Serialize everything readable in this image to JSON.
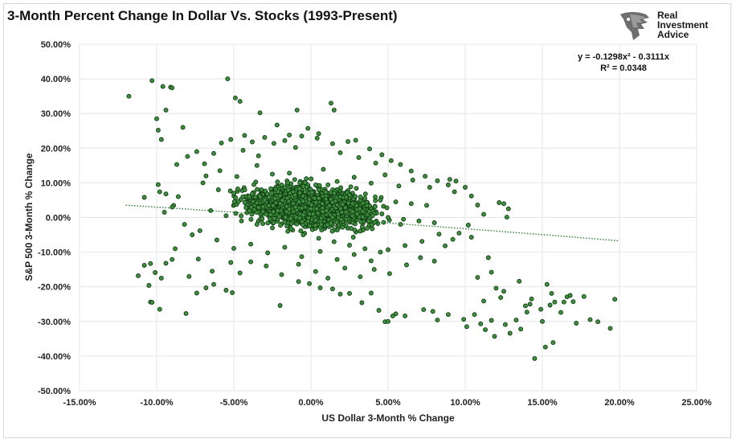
{
  "header": {
    "title": "3-Month Percent Change In Dollar Vs. Stocks (1993-Present)"
  },
  "logo": {
    "icon": "eagle-head-icon",
    "lines": [
      "Real",
      "Investment",
      "Advice"
    ]
  },
  "colors": {
    "point_fill": "#3f8f3f",
    "point_stroke": "#0f3a12",
    "trendline": "#2e7d32",
    "grid": "#e6e6e6"
  },
  "chart_data": {
    "type": "scatter",
    "title": "3-Month Percent Change In Dollar Vs. Stocks (1993-Present)",
    "xlabel": "US Dollar 3-Month % Change",
    "ylabel": "S&P 500 3-Month % Change",
    "xlim": [
      -15,
      25
    ],
    "ylim": [
      -50,
      50
    ],
    "x_ticks": [
      -15,
      -10,
      -5,
      0,
      5,
      10,
      15,
      20,
      25
    ],
    "x_tick_labels": [
      "-15.00%",
      "-10.00%",
      "-5.00%",
      "0.00%",
      "5.00%",
      "10.00%",
      "15.00%",
      "20.00%",
      "25.00%"
    ],
    "y_ticks": [
      50,
      40,
      30,
      20,
      10,
      0,
      -10,
      -20,
      -30,
      -40,
      -50
    ],
    "y_tick_labels": [
      "50.00%",
      "40.00%",
      "30.00%",
      "20.00%",
      "10.00%",
      "0.00%",
      "-10.00%",
      "-20.00%",
      "-30.00%",
      "-40.00%",
      "-50.00%"
    ],
    "grid": true,
    "legend": "none",
    "trendline": {
      "type": "polynomial",
      "order": 2,
      "coefficients": [
        -0.1298,
        -0.3111,
        0
      ],
      "x_range": [
        -12,
        20
      ],
      "equation": "y = -0.1298x² - 0.3111x",
      "r2": "R² = 0.0348",
      "style": "dotted"
    },
    "series": [
      {
        "points": [
          [
            -11.8,
            35
          ],
          [
            -10.3,
            39.5
          ],
          [
            -9.6,
            37.8
          ],
          [
            -9.1,
            37.6
          ],
          [
            -9.0,
            37.4
          ],
          [
            -10.0,
            28.5
          ],
          [
            -9.9,
            25.2
          ],
          [
            -9.4,
            31.0
          ],
          [
            -9.7,
            22.5
          ],
          [
            -8.3,
            26.0
          ],
          [
            -5.4,
            40.0
          ],
          [
            -4.9,
            34.5
          ],
          [
            -4.6,
            33.5
          ],
          [
            -3.3,
            30.2
          ],
          [
            -0.9,
            31.0
          ],
          [
            1.3,
            33.0
          ],
          [
            1.5,
            31.0
          ],
          [
            -1.4,
            23.8
          ],
          [
            -0.2,
            25.7
          ],
          [
            -2.2,
            26.7
          ],
          [
            0.5,
            24.2
          ],
          [
            -9.9,
            9.5
          ],
          [
            -9.4,
            6.8
          ],
          [
            -8.6,
            6.0
          ],
          [
            -8.9,
            3.5
          ],
          [
            -9.5,
            1.5
          ],
          [
            -10.8,
            5.8
          ],
          [
            -9.8,
            7.4
          ],
          [
            10.4,
            6.2
          ],
          [
            10.8,
            3.6
          ],
          [
            11.2,
            0.9
          ],
          [
            12.2,
            4.3
          ],
          [
            12.5,
            4.0
          ],
          [
            12.8,
            2.5
          ],
          [
            12.7,
            0.1
          ],
          [
            9.0,
            11.0
          ],
          [
            9.4,
            10.5
          ],
          [
            10.0,
            8.7
          ],
          [
            9.3,
            7.4
          ],
          [
            8.9,
            9.4
          ],
          [
            -11.2,
            -16.8
          ],
          [
            -10.8,
            -13.8
          ],
          [
            -10.4,
            -13.3
          ],
          [
            -10.1,
            -15.9
          ],
          [
            -9.7,
            -17.5
          ],
          [
            -9.4,
            -13.2
          ],
          [
            -9.0,
            -12.1
          ],
          [
            -10.5,
            -19.6
          ],
          [
            -10.4,
            -24.4
          ],
          [
            -10.3,
            -24.5
          ],
          [
            -9.8,
            -26.5
          ],
          [
            -8.1,
            -27.7
          ],
          [
            -7.4,
            -21.8
          ],
          [
            -6.8,
            -20.3
          ],
          [
            -5.5,
            -21.0
          ],
          [
            -5.1,
            -21.7
          ],
          [
            -6.3,
            -19.3
          ],
          [
            -7.9,
            -17.0
          ],
          [
            -2.0,
            -25.4
          ],
          [
            -0.8,
            -18.5
          ],
          [
            -0.1,
            -19.1
          ],
          [
            0.6,
            -20.3
          ],
          [
            1.4,
            -20.6
          ],
          [
            1.9,
            -22.1
          ],
          [
            2.5,
            -21.9
          ],
          [
            3.3,
            -24.6
          ],
          [
            3.9,
            -21.8
          ],
          [
            4.4,
            -26.8
          ],
          [
            4.8,
            -30.1
          ],
          [
            5.0,
            -30.0
          ],
          [
            5.3,
            -28.4
          ],
          [
            5.5,
            -27.8
          ],
          [
            6.1,
            -28.4
          ],
          [
            7.3,
            -26.6
          ],
          [
            7.9,
            -27.1
          ],
          [
            8.2,
            -29.6
          ],
          [
            8.9,
            -28.0
          ],
          [
            9.9,
            -29.4
          ],
          [
            10.1,
            -31.5
          ],
          [
            10.6,
            -28.0
          ],
          [
            11.0,
            -30.7
          ],
          [
            11.3,
            -32.4
          ],
          [
            11.7,
            -29.7
          ],
          [
            11.9,
            -34.3
          ],
          [
            12.6,
            -30.9
          ],
          [
            12.9,
            -33.4
          ],
          [
            13.3,
            -29.6
          ],
          [
            13.6,
            -32.2
          ],
          [
            13.9,
            -25.5
          ],
          [
            14.2,
            -25.0
          ],
          [
            14.5,
            -40.7
          ],
          [
            14.9,
            -26.5
          ],
          [
            15.0,
            -30.0
          ],
          [
            15.2,
            -37.4
          ],
          [
            15.5,
            -25.3
          ],
          [
            15.8,
            -24.4
          ],
          [
            15.7,
            -36.1
          ],
          [
            16.2,
            -27.4
          ],
          [
            16.4,
            -24.4
          ],
          [
            16.6,
            -22.9
          ],
          [
            17.0,
            -24.3
          ],
          [
            17.2,
            -30.5
          ],
          [
            17.7,
            -22.8
          ],
          [
            18.1,
            -29.5
          ],
          [
            18.6,
            -30.1
          ],
          [
            19.4,
            -32.0
          ],
          [
            19.7,
            -23.6
          ],
          [
            11.2,
            -24.1
          ],
          [
            12.0,
            -20.4
          ],
          [
            12.3,
            -23.1
          ],
          [
            11.7,
            -15.8
          ],
          [
            10.8,
            -17.3
          ],
          [
            14.0,
            -27.3
          ],
          [
            14.3,
            -23.5
          ],
          [
            15.3,
            -19.3
          ],
          [
            15.6,
            -21.9
          ],
          [
            16.8,
            -22.5
          ],
          [
            13.5,
            -18.4
          ],
          [
            12.5,
            -21.3
          ],
          [
            11.5,
            -11.6
          ],
          [
            -6.3,
            18.5
          ],
          [
            -5.8,
            21.5
          ],
          [
            -5.2,
            22.5
          ],
          [
            -4.3,
            23.7
          ],
          [
            -3.8,
            21.8
          ],
          [
            -3.0,
            23.1
          ],
          [
            -2.4,
            21.4
          ],
          [
            -1.7,
            22.2
          ],
          [
            -0.6,
            23.5
          ],
          [
            0.4,
            22.9
          ],
          [
            1.4,
            21.3
          ],
          [
            2.4,
            21.9
          ],
          [
            2.9,
            22.3
          ],
          [
            3.8,
            19.8
          ],
          [
            4.6,
            18.1
          ],
          [
            5.2,
            16.4
          ],
          [
            5.8,
            15.3
          ],
          [
            -8.0,
            17.6
          ],
          [
            -8.7,
            15.3
          ],
          [
            -7.4,
            19.0
          ],
          [
            -6.9,
            15.5
          ],
          [
            -4.4,
            19.4
          ],
          [
            -3.4,
            17.8
          ],
          [
            -1.0,
            20.2
          ],
          [
            1.9,
            18.7
          ],
          [
            3.1,
            17.3
          ],
          [
            4.2,
            15.7
          ],
          [
            6.5,
            13.4
          ],
          [
            7.4,
            11.9
          ],
          [
            8.2,
            10.6
          ],
          [
            -9.0,
            3.0
          ],
          [
            -8.2,
            -2.0
          ],
          [
            -7.7,
            -5.0
          ],
          [
            -8.8,
            -9.0
          ],
          [
            -7.3,
            -12.0
          ],
          [
            -6.4,
            -15.5
          ],
          [
            -5.2,
            -13.0
          ],
          [
            -4.6,
            -16.0
          ],
          [
            -3.9,
            -12.8
          ],
          [
            -2.9,
            -14.0
          ],
          [
            -1.9,
            -16.5
          ],
          [
            -0.8,
            -13.5
          ],
          [
            0.3,
            -15.6
          ],
          [
            1.1,
            -17.5
          ],
          [
            2.2,
            -14.6
          ],
          [
            3.2,
            -17.1
          ],
          [
            4.1,
            -15.0
          ],
          [
            5.1,
            -16.2
          ],
          [
            6.2,
            -13.7
          ],
          [
            7.1,
            -11.6
          ],
          [
            8.0,
            -12.6
          ],
          [
            8.7,
            -8.2
          ],
          [
            9.2,
            -6.3
          ],
          [
            9.6,
            -4.5
          ],
          [
            10.2,
            -2.2
          ],
          [
            10.4,
            -5.7
          ],
          [
            -3.5,
            15.0
          ],
          [
            -2.5,
            12.5
          ],
          [
            -1.5,
            10.0
          ],
          [
            -0.5,
            9.0
          ],
          [
            0.5,
            8.0
          ],
          [
            1.5,
            7.0
          ],
          [
            2.5,
            6.5
          ],
          [
            3.5,
            5.5
          ],
          [
            4.5,
            5.0
          ],
          [
            5.5,
            4.5
          ],
          [
            6.5,
            4.0
          ],
          [
            7.5,
            3.5
          ],
          [
            -7.0,
            10.0
          ],
          [
            -6.0,
            8.0
          ],
          [
            -5.0,
            7.0
          ],
          [
            -4.0,
            6.0
          ],
          [
            -3.0,
            5.0
          ],
          [
            -2.0,
            4.0
          ],
          [
            -1.0,
            3.0
          ],
          [
            0.0,
            2.5
          ],
          [
            1.0,
            2.0
          ],
          [
            2.0,
            1.5
          ],
          [
            3.0,
            1.0
          ],
          [
            4.0,
            0.5
          ],
          [
            5.0,
            0.0
          ],
          [
            6.0,
            -0.5
          ],
          [
            7.0,
            -1.0
          ],
          [
            8.0,
            -1.5
          ],
          [
            -6.5,
            2.0
          ],
          [
            -5.5,
            0.5
          ],
          [
            -4.5,
            -1.0
          ],
          [
            -3.5,
            -2.0
          ],
          [
            -2.5,
            -3.0
          ],
          [
            -1.5,
            -4.0
          ],
          [
            -0.5,
            -5.0
          ],
          [
            0.5,
            -6.0
          ],
          [
            1.5,
            -7.0
          ],
          [
            2.5,
            -8.0
          ],
          [
            3.5,
            -9.0
          ],
          [
            4.5,
            -10.0
          ],
          [
            -6.8,
            12.0
          ],
          [
            -5.9,
            13.5
          ],
          [
            -4.8,
            11.8
          ],
          [
            -3.7,
            9.5
          ],
          [
            -2.6,
            8.3
          ],
          [
            -1.4,
            12.8
          ],
          [
            -0.3,
            11.2
          ],
          [
            0.8,
            13.9
          ],
          [
            1.7,
            10.4
          ],
          [
            2.8,
            11.6
          ],
          [
            3.9,
            9.9
          ],
          [
            4.8,
            12.3
          ],
          [
            5.7,
            9.1
          ],
          [
            6.6,
            10.8
          ],
          [
            7.7,
            8.7
          ],
          [
            -7.2,
            -3.8
          ],
          [
            -6.1,
            -6.5
          ],
          [
            -5.0,
            -8.9
          ],
          [
            -3.9,
            -7.7
          ],
          [
            -2.8,
            -10.2
          ],
          [
            -1.7,
            -8.6
          ],
          [
            -0.6,
            -11.3
          ],
          [
            0.6,
            -9.8
          ],
          [
            1.7,
            -12.1
          ],
          [
            2.8,
            -10.7
          ],
          [
            3.9,
            -12.5
          ],
          [
            5.0,
            -9.3
          ],
          [
            6.1,
            -8.1
          ],
          [
            7.2,
            -6.9
          ],
          [
            8.3,
            -4.8
          ]
        ]
      }
    ],
    "dense_cloud": {
      "x_center": 0.0,
      "x_spread": 4.2,
      "y_center": 3.0,
      "y_spread": 6.5,
      "x_min": -7.5,
      "x_max": 8.3,
      "y_min": -15,
      "y_max": 17,
      "count": 2200
    }
  }
}
